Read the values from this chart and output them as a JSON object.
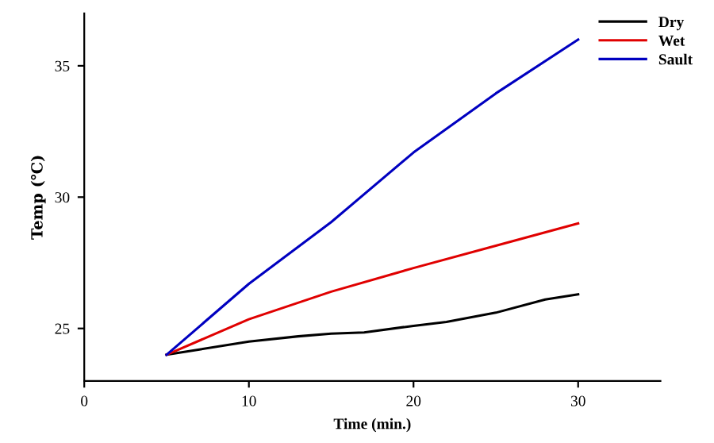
{
  "chart_data": {
    "type": "line",
    "xlabel": "Time (min.)",
    "ylabel": "Temp (℃)",
    "xlim": [
      0,
      35
    ],
    "xticks": [
      0,
      10,
      20,
      30
    ],
    "ylim": [
      23,
      37
    ],
    "yticks": [
      25,
      30,
      35
    ],
    "grid": false,
    "legend": "top right",
    "marker": "none",
    "line_style": "solid",
    "series": [
      {
        "name": "Dry",
        "color": "#000000",
        "x": [
          5,
          7,
          10,
          13,
          15,
          17,
          20,
          22,
          25,
          28,
          30
        ],
        "values": [
          24,
          24.2,
          24.5,
          24.7,
          24.8,
          24.85,
          25.1,
          25.25,
          25.6,
          26.1,
          26.3
        ]
      },
      {
        "name": "Wet",
        "color": "#e00000",
        "x": [
          5,
          10,
          15,
          20,
          25,
          30
        ],
        "values": [
          24,
          25.35,
          26.4,
          27.3,
          28.15,
          29
        ]
      },
      {
        "name": "Sault",
        "color": "#0000c0",
        "x": [
          5,
          10,
          15,
          20,
          25,
          30
        ],
        "values": [
          24,
          26.7,
          29.05,
          31.7,
          33.95,
          36
        ]
      }
    ]
  }
}
